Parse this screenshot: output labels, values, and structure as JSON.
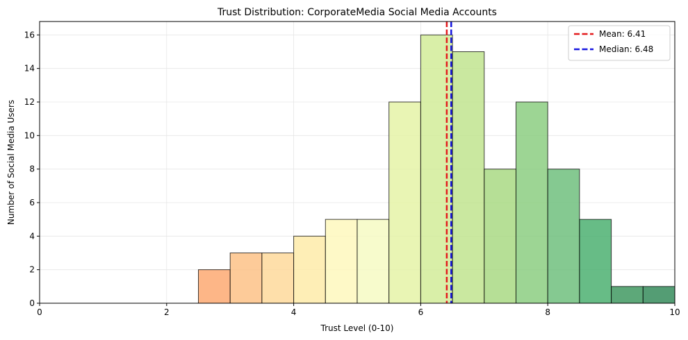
{
  "chart_data": {
    "type": "bar",
    "title": "Trust Distribution: CorporateMedia Social Media Accounts",
    "xlabel": "Trust Level (0-10)",
    "ylabel": "Number of Social Media Users",
    "xlim": [
      0,
      10
    ],
    "ylim": [
      0,
      16.8
    ],
    "xticks": [
      0,
      2,
      4,
      6,
      8,
      10
    ],
    "yticks": [
      0,
      2,
      4,
      6,
      8,
      10,
      12,
      14,
      16
    ],
    "grid": true,
    "legend_position": "top-right",
    "bins": [
      {
        "x0": 0.0,
        "x1": 0.5,
        "count": 0,
        "color": "#a50026"
      },
      {
        "x0": 0.5,
        "x1": 1.0,
        "count": 0,
        "color": "#c62a27"
      },
      {
        "x0": 1.0,
        "x1": 1.5,
        "count": 0,
        "color": "#e24a33"
      },
      {
        "x0": 1.5,
        "x1": 2.0,
        "count": 0,
        "color": "#f46d43"
      },
      {
        "x0": 2.0,
        "x1": 2.5,
        "count": 0,
        "color": "#f88d52"
      },
      {
        "x0": 2.5,
        "x1": 3.0,
        "count": 2,
        "color": "#fca66d"
      },
      {
        "x0": 3.0,
        "x1": 3.5,
        "count": 3,
        "color": "#fdbf82"
      },
      {
        "x0": 3.5,
        "x1": 4.0,
        "count": 3,
        "color": "#fed897"
      },
      {
        "x0": 4.0,
        "x1": 4.5,
        "count": 4,
        "color": "#feeaa6"
      },
      {
        "x0": 4.5,
        "x1": 5.0,
        "count": 5,
        "color": "#fef8bb"
      },
      {
        "x0": 5.0,
        "x1": 5.5,
        "count": 5,
        "color": "#f5fac1"
      },
      {
        "x0": 5.5,
        "x1": 6.0,
        "count": 12,
        "color": "#e4f3a3"
      },
      {
        "x0": 6.0,
        "x1": 6.5,
        "count": 16,
        "color": "#d1ec95"
      },
      {
        "x0": 6.5,
        "x1": 7.0,
        "count": 15,
        "color": "#bee38b"
      },
      {
        "x0": 7.0,
        "x1": 7.5,
        "count": 8,
        "color": "#a6d87f"
      },
      {
        "x0": 7.5,
        "x1": 8.0,
        "count": 12,
        "color": "#88cc7c"
      },
      {
        "x0": 8.0,
        "x1": 8.5,
        "count": 8,
        "color": "#6abd79"
      },
      {
        "x0": 8.5,
        "x1": 9.0,
        "count": 5,
        "color": "#45ad6b"
      },
      {
        "x0": 9.0,
        "x1": 9.5,
        "count": 1,
        "color": "#39955b"
      },
      {
        "x0": 9.5,
        "x1": 10.0,
        "count": 1,
        "color": "#2e8755"
      }
    ],
    "lines": [
      {
        "name": "Mean: 6.41",
        "x": 6.41,
        "color": "#e31a1c",
        "style": "dashed"
      },
      {
        "name": "Median: 6.48",
        "x": 6.48,
        "color": "#1515e0",
        "style": "dashed"
      }
    ]
  }
}
